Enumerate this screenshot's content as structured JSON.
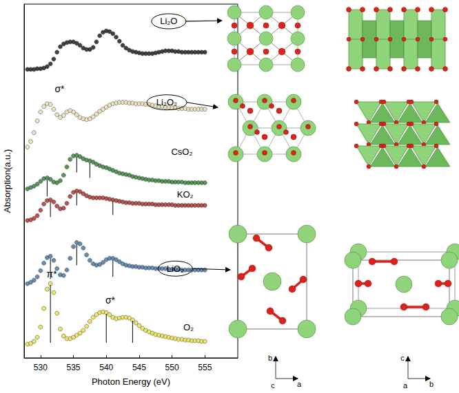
{
  "chart_data": {
    "type": "scatter",
    "x_label": "Photon Energy (eV)",
    "y_label": "Absorption(a.u.)",
    "xlim": [
      527.5,
      560
    ],
    "xticks": [
      530,
      535,
      540,
      545,
      550,
      555
    ],
    "ylim": [
      0,
      515
    ],
    "tick_labels": "x",
    "grid": false,
    "marker": "circle",
    "x": [
      528,
      528.5,
      529,
      529.5,
      530,
      530.5,
      531,
      531.5,
      532,
      532.5,
      533,
      533.5,
      534,
      534.5,
      535,
      535.5,
      536,
      536.5,
      537,
      537.5,
      538,
      538.5,
      539,
      539.5,
      540,
      540.5,
      541,
      541.5,
      542,
      542.5,
      543,
      543.5,
      544,
      544.5,
      545,
      545.5,
      546,
      546.5,
      547,
      547.5,
      548,
      548.5,
      549,
      549.5,
      550,
      550.5,
      551,
      551.5,
      552,
      552.5,
      553,
      553.5,
      554,
      554.5,
      555
    ],
    "series": [
      {
        "name": "Li₂O",
        "color": "#111111",
        "label_x": 549.5,
        "label_y": 490,
        "values": [
          420,
          420,
          420,
          421,
          421,
          422,
          424,
          428,
          435,
          445,
          453,
          457,
          459,
          460,
          460,
          458,
          455,
          451,
          449,
          449,
          452,
          460,
          469,
          474,
          476,
          475,
          472,
          467,
          461,
          455,
          451,
          448,
          446,
          445,
          444,
          443,
          443,
          443,
          443,
          444,
          445,
          446,
          447,
          447,
          447,
          446,
          446,
          445,
          445,
          445,
          445,
          445,
          445,
          445,
          445
        ]
      },
      {
        "name": "Li₂O₂",
        "color": "#e6dcb0",
        "label_x": 549.2,
        "label_y": 372,
        "values": [
          307,
          315,
          328,
          345,
          358,
          366,
          370,
          369,
          362,
          354,
          350,
          353,
          358,
          360,
          358,
          354,
          350,
          348,
          347,
          348,
          351,
          355,
          359,
          362,
          365,
          368,
          370,
          371,
          372,
          372,
          372,
          371,
          371,
          370,
          370,
          370,
          369,
          369,
          368,
          367,
          366,
          366,
          365,
          365,
          364,
          364,
          363,
          363,
          363,
          362,
          362,
          362,
          362,
          362,
          362
        ]
      },
      {
        "name": "CsO₂",
        "color": "#2f7a2f",
        "label_x": 551.5,
        "label_y": 300,
        "values": [
          246,
          248,
          250,
          253,
          257,
          261,
          262,
          260,
          256,
          255,
          258,
          266,
          278,
          289,
          294,
          295,
          293,
          290,
          288,
          287,
          285,
          282,
          280,
          278,
          277,
          275,
          273,
          271,
          269,
          268,
          267,
          266,
          264,
          263,
          262,
          261,
          260,
          259,
          259,
          258,
          258,
          257,
          257,
          257,
          256,
          256,
          256,
          256,
          255,
          255,
          255,
          255,
          255,
          255,
          255
        ]
      },
      {
        "name": "KO₂",
        "color": "#a52a2a",
        "label_x": 552,
        "label_y": 238,
        "values": [
          200,
          201,
          203,
          207,
          215,
          224,
          229,
          230,
          227,
          221,
          217,
          218,
          225,
          235,
          241,
          243,
          242,
          239,
          236,
          234,
          233,
          233,
          233,
          233,
          232,
          231,
          230,
          229,
          228,
          227,
          226,
          226,
          225,
          225,
          225,
          224,
          224,
          224,
          224,
          223,
          223,
          223,
          223,
          223,
          223,
          222,
          222,
          222,
          222,
          222,
          222,
          222,
          222,
          222,
          222
        ]
      },
      {
        "name": "LiO₂",
        "color": "#3f6f9f",
        "label_x": 550.5,
        "label_y": 130,
        "values": [
          108,
          110,
          113,
          118,
          127,
          138,
          146,
          148,
          142,
          130,
          121,
          120,
          128,
          145,
          162,
          168,
          166,
          160,
          150,
          142,
          137,
          135,
          136,
          139,
          143,
          145,
          145,
          143,
          140,
          137,
          135,
          134,
          133,
          133,
          132,
          132,
          131,
          131,
          131,
          130,
          130,
          130,
          130,
          129,
          129,
          129,
          129,
          128,
          128,
          128,
          128,
          128,
          128,
          128,
          128
        ]
      },
      {
        "name": "O₂",
        "color": "#e8e040",
        "label_x": 552.5,
        "label_y": 45,
        "values": [
          20,
          21,
          24,
          30,
          45,
          72,
          100,
          108,
          95,
          65,
          42,
          32,
          28,
          28,
          30,
          33,
          36,
          40,
          46,
          53,
          59,
          63,
          66,
          67,
          66,
          63,
          59,
          57,
          58,
          59,
          59,
          58,
          55,
          51,
          47,
          43,
          40,
          38,
          36,
          34,
          33,
          32,
          31,
          30,
          29,
          28,
          27,
          27,
          26,
          26,
          25,
          25,
          25,
          24,
          24
        ]
      }
    ],
    "peak_lines": [
      {
        "series": "O₂",
        "x": 531.5,
        "y": [
          22,
          106
        ]
      },
      {
        "series": "O₂",
        "x": 540,
        "y": [
          22,
          64
        ]
      },
      {
        "series": "O₂",
        "x": 544,
        "y": [
          22,
          54
        ]
      },
      {
        "series": "LiO₂",
        "x": 531.5,
        "y": [
          115,
          145
        ]
      },
      {
        "series": "LiO₂",
        "x": 535.5,
        "y": [
          135,
          165
        ]
      },
      {
        "series": "LiO₂",
        "x": 541,
        "y": [
          118,
          142
        ]
      },
      {
        "series": "KO₂",
        "x": 531.5,
        "y": [
          205,
          227
        ]
      },
      {
        "series": "KO₂",
        "x": 535.5,
        "y": [
          222,
          240
        ]
      },
      {
        "series": "KO₂",
        "x": 541,
        "y": [
          208,
          228
        ]
      },
      {
        "series": "CsO₂",
        "x": 531,
        "y": [
          235,
          259
        ]
      },
      {
        "series": "CsO₂",
        "x": 535.5,
        "y": [
          270,
          292
        ]
      },
      {
        "series": "CsO₂",
        "x": 537.5,
        "y": [
          262,
          284
        ]
      }
    ],
    "annotations": [
      {
        "text": "σ*",
        "x": 532.9,
        "y": 392
      },
      {
        "text": "π*",
        "x": 531.7,
        "y": 122
      },
      {
        "text": "σ*",
        "x": 540.6,
        "y": 84
      }
    ]
  },
  "structures": [
    {
      "compound": "Li₂O"
    },
    {
      "compound": "Li₂O₂"
    },
    {
      "compound": "LiO₂",
      "axes": [
        {
          "up": "b",
          "right": "a",
          "out": "c"
        },
        {
          "up": "c",
          "right": "b",
          "out": "a"
        }
      ]
    }
  ]
}
